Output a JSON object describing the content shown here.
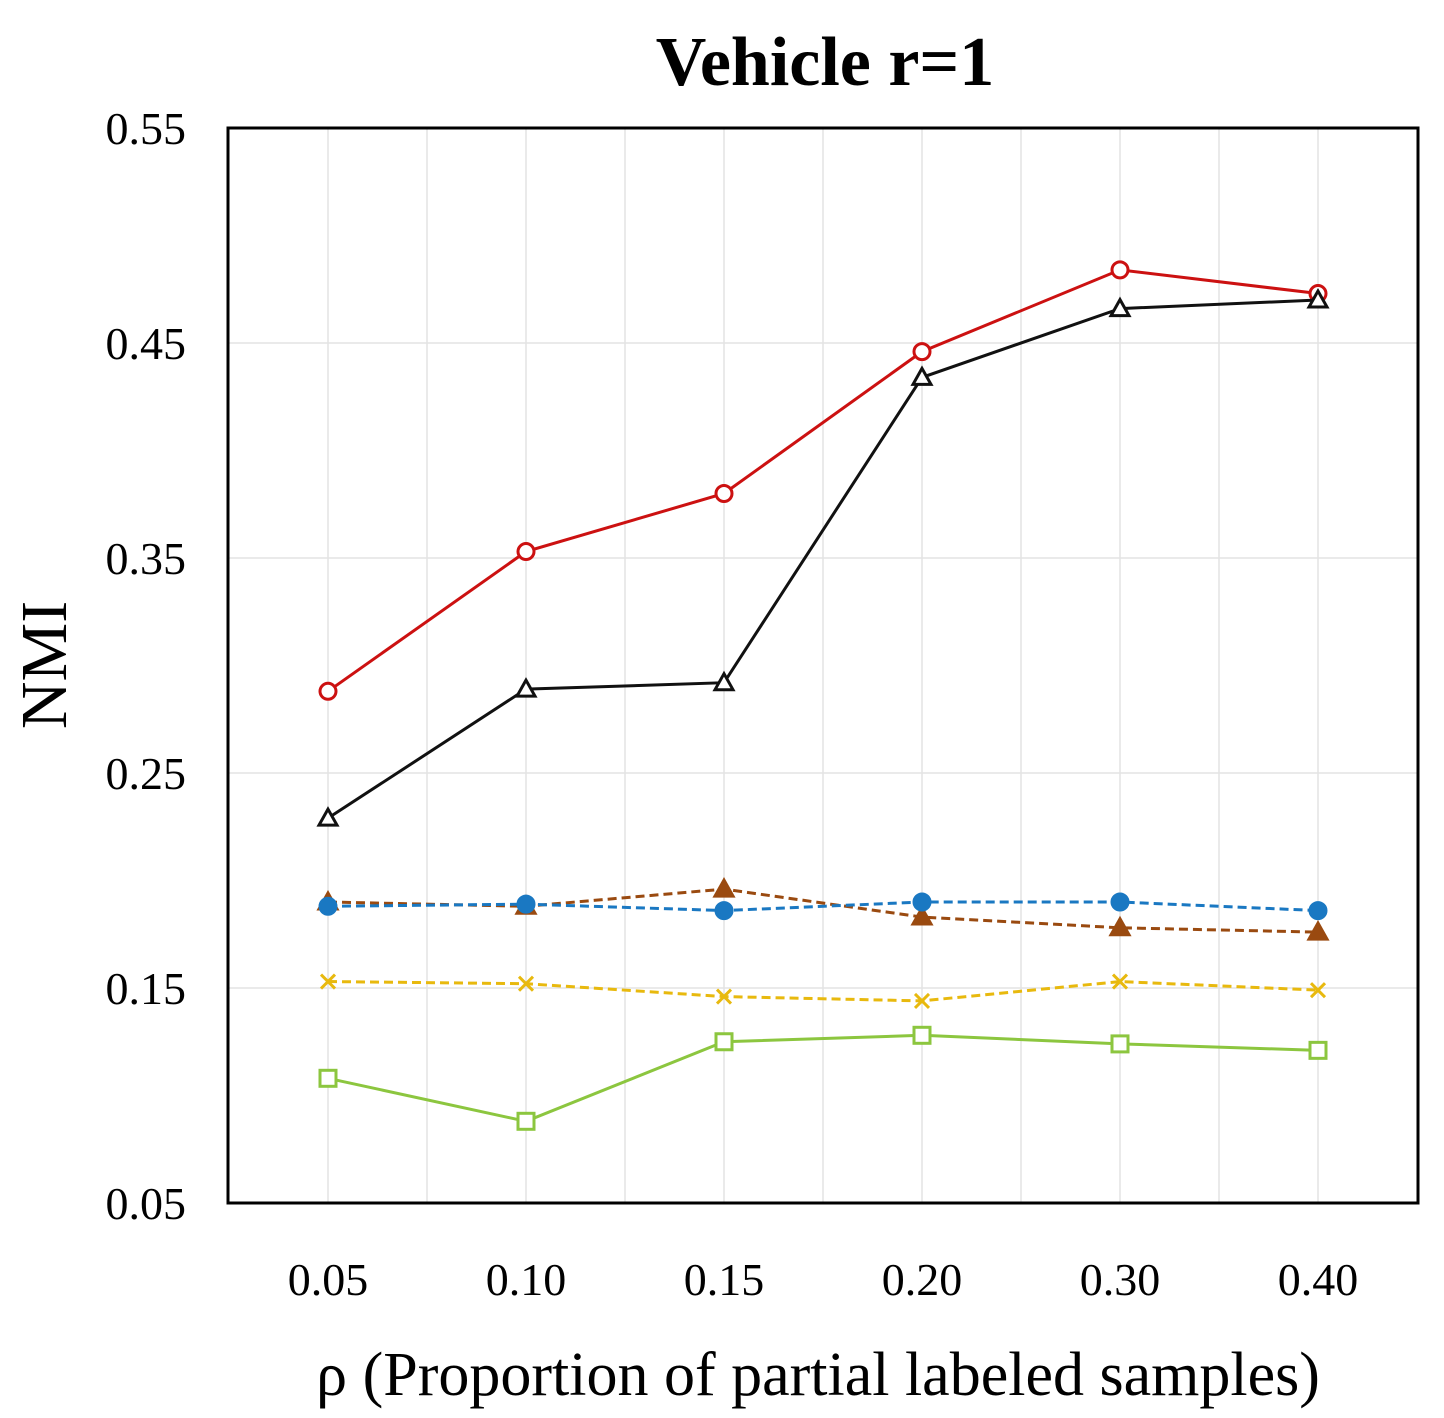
{
  "chart_data": {
    "type": "line",
    "title": "Vehicle r=1",
    "xlabel": "ρ (Proportion of partial labeled samples)",
    "ylabel": "NMI",
    "categories": [
      "0.05",
      "0.10",
      "0.15",
      "0.20",
      "0.30",
      "0.40"
    ],
    "ylim": [
      0.05,
      0.55
    ],
    "yticks": [
      "0.05",
      "0.15",
      "0.25",
      "0.35",
      "0.45",
      "0.55"
    ],
    "grid": true,
    "legend": "none",
    "series": [
      {
        "name": "red-circle",
        "color": "#cc1111",
        "marker": "circle-open",
        "dash": false,
        "values": [
          0.288,
          0.353,
          0.38,
          0.446,
          0.484,
          0.473
        ]
      },
      {
        "name": "black-triangle",
        "color": "#111111",
        "marker": "triangle-open",
        "dash": false,
        "values": [
          0.229,
          0.289,
          0.292,
          0.434,
          0.466,
          0.47
        ]
      },
      {
        "name": "brown-triangle",
        "color": "#9a4a10",
        "marker": "triangle-filled",
        "dash": true,
        "values": [
          0.19,
          0.188,
          0.196,
          0.183,
          0.178,
          0.176
        ]
      },
      {
        "name": "blue-circle",
        "color": "#1a78c2",
        "marker": "circle-filled",
        "dash": true,
        "values": [
          0.188,
          0.189,
          0.186,
          0.19,
          0.19,
          0.186
        ]
      },
      {
        "name": "yellow-x",
        "color": "#e8b90e",
        "marker": "x",
        "dash": true,
        "values": [
          0.153,
          0.152,
          0.146,
          0.144,
          0.153,
          0.149
        ]
      },
      {
        "name": "green-square",
        "color": "#8cc63f",
        "marker": "square-open",
        "dash": false,
        "values": [
          0.108,
          0.088,
          0.125,
          0.128,
          0.124,
          0.121
        ]
      }
    ]
  }
}
